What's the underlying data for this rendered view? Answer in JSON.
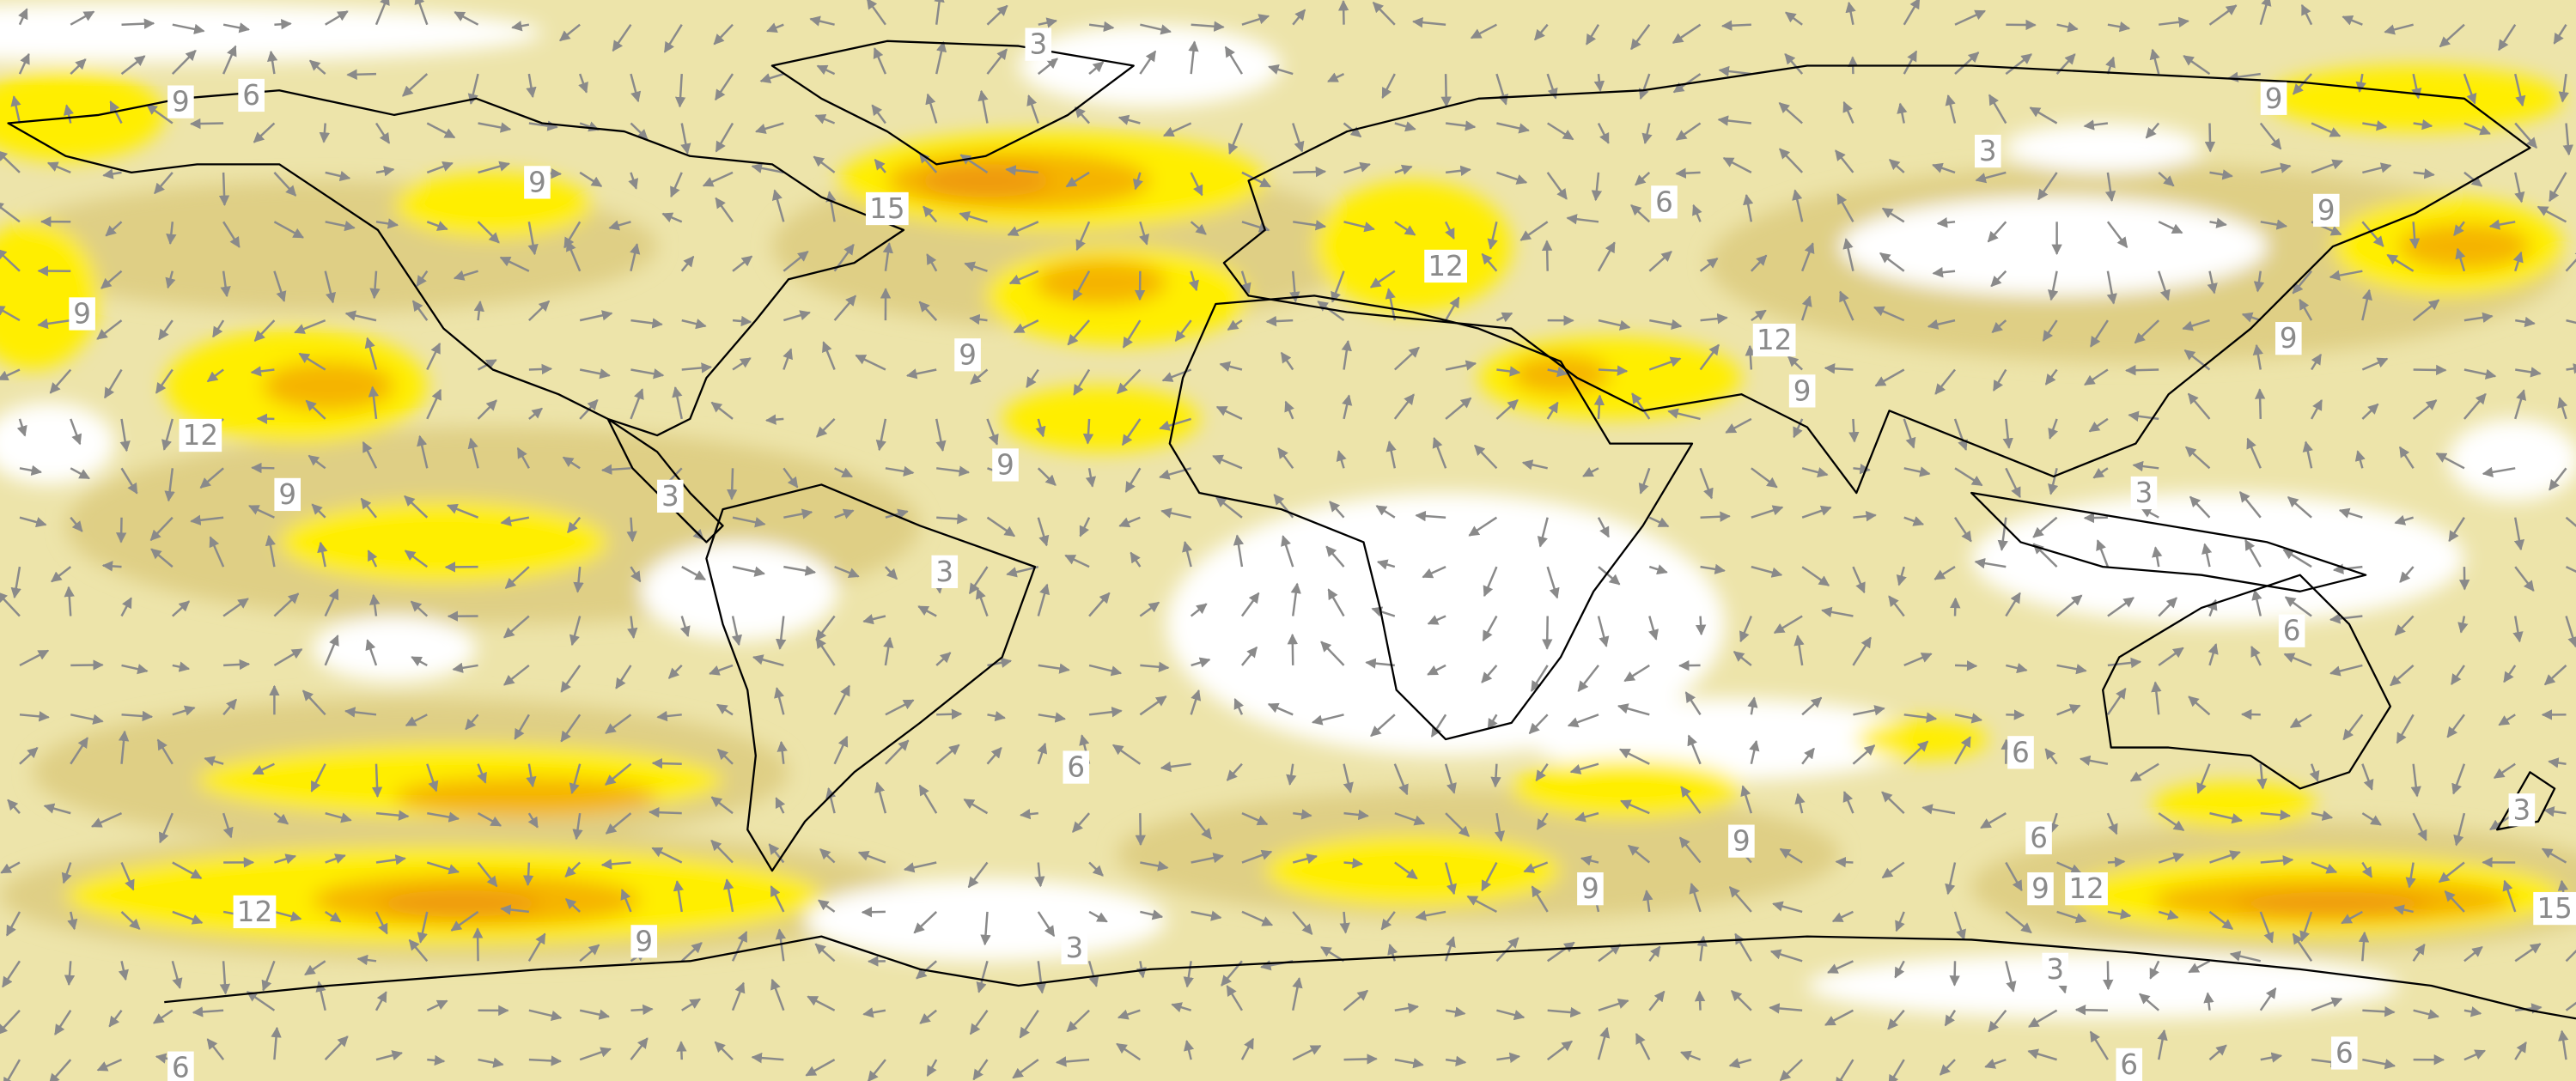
{
  "map": {
    "contour_labels": [
      9,
      6,
      3,
      9,
      15,
      9,
      12,
      9,
      9,
      9,
      3,
      3,
      6,
      3,
      6,
      12,
      12,
      9,
      9,
      9,
      9,
      3,
      6,
      6,
      9,
      9,
      6,
      9,
      12,
      15,
      3,
      12,
      9,
      3,
      3,
      6,
      6,
      6
    ]
  }
}
